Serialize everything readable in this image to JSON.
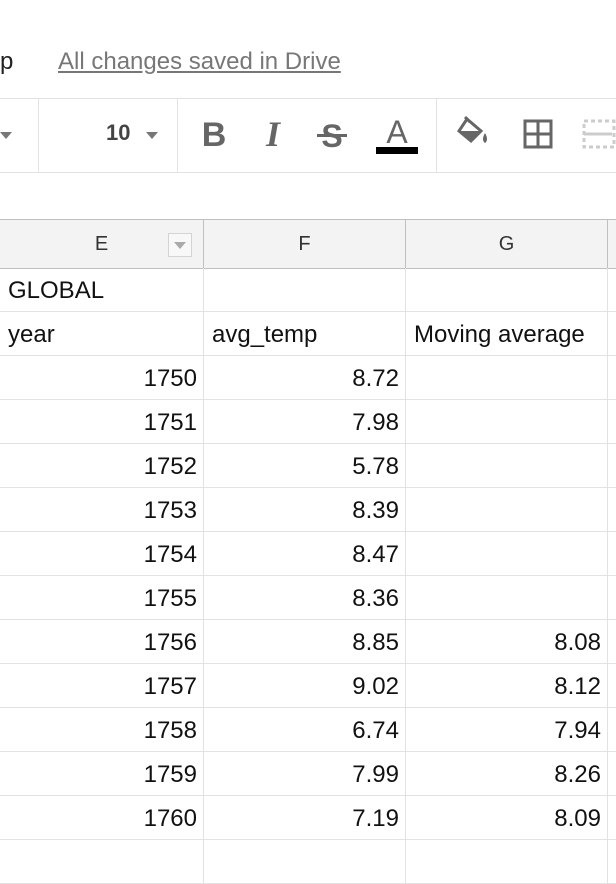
{
  "menubar": {
    "partial_menu_label": "p",
    "save_status": "All changes saved in Drive"
  },
  "toolbar": {
    "font_size": "10",
    "text_color_swatch": "#000000",
    "buttons": [
      "bold-icon",
      "italic-icon",
      "strikethrough-icon",
      "text-color-icon",
      "fill-color-icon",
      "borders-icon",
      "merge-cells-icon"
    ]
  },
  "columns": [
    "E",
    "F",
    "G"
  ],
  "rows": [
    {
      "E": "GLOBAL",
      "F": "",
      "G": ""
    },
    {
      "E": "year",
      "F": "avg_temp",
      "G": "Moving average"
    },
    {
      "E": "1750",
      "F": "8.72",
      "G": ""
    },
    {
      "E": "1751",
      "F": "7.98",
      "G": ""
    },
    {
      "E": "1752",
      "F": "5.78",
      "G": ""
    },
    {
      "E": "1753",
      "F": "8.39",
      "G": ""
    },
    {
      "E": "1754",
      "F": "8.47",
      "G": ""
    },
    {
      "E": "1755",
      "F": "8.36",
      "G": ""
    },
    {
      "E": "1756",
      "F": "8.85",
      "G": "8.08"
    },
    {
      "E": "1757",
      "F": "9.02",
      "G": "8.12"
    },
    {
      "E": "1758",
      "F": "6.74",
      "G": "7.94"
    },
    {
      "E": "1759",
      "F": "7.99",
      "G": "8.26"
    },
    {
      "E": "1760",
      "F": "7.19",
      "G": "8.09"
    }
  ]
}
